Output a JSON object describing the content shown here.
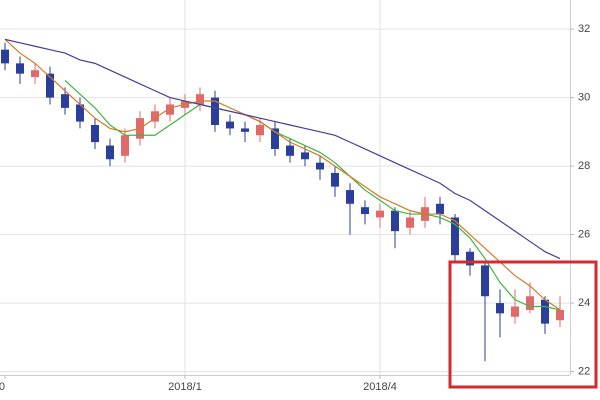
{
  "chart_data": {
    "type": "candlestick",
    "categories": [
      "0",
      null,
      null,
      null,
      null,
      null,
      null,
      null,
      null,
      null,
      null,
      null,
      "2018/1",
      null,
      null,
      null,
      null,
      null,
      null,
      null,
      null,
      null,
      null,
      null,
      null,
      "2018/4",
      null,
      null,
      null,
      null,
      null,
      null,
      null,
      null,
      null,
      null,
      null,
      null
    ],
    "open": [
      31.4,
      31.0,
      30.6,
      30.7,
      30.1,
      29.8,
      29.2,
      28.6,
      28.3,
      28.8,
      29.3,
      29.5,
      29.7,
      29.8,
      30.0,
      29.3,
      29.1,
      28.9,
      29.1,
      28.6,
      28.4,
      28.1,
      27.8,
      27.3,
      26.8,
      26.5,
      26.7,
      26.2,
      26.4,
      26.9,
      26.5,
      25.5,
      25.1,
      24.0,
      23.6,
      23.8,
      24.1,
      23.5
    ],
    "high": [
      31.6,
      31.2,
      31.0,
      30.9,
      30.3,
      30.0,
      29.4,
      28.8,
      29.1,
      29.6,
      29.8,
      30.0,
      30.1,
      30.3,
      30.2,
      29.5,
      29.3,
      29.4,
      29.3,
      28.8,
      28.6,
      28.3,
      28.0,
      27.5,
      27.0,
      26.9,
      26.8,
      26.7,
      27.1,
      27.1,
      26.6,
      25.6,
      25.2,
      24.4,
      24.4,
      24.6,
      24.2,
      24.2
    ],
    "low": [
      30.8,
      30.4,
      30.4,
      29.8,
      29.5,
      29.1,
      28.5,
      28.0,
      28.1,
      28.6,
      29.1,
      29.3,
      29.5,
      29.6,
      29.0,
      28.9,
      28.7,
      28.7,
      28.3,
      28.1,
      28.0,
      27.6,
      27.1,
      26.0,
      26.3,
      26.2,
      25.6,
      26.0,
      26.2,
      26.3,
      25.2,
      24.8,
      22.3,
      23.0,
      23.4,
      23.7,
      23.1,
      23.3
    ],
    "close": [
      31.0,
      30.7,
      30.8,
      30.0,
      29.7,
      29.3,
      28.7,
      28.2,
      28.9,
      29.4,
      29.6,
      29.8,
      29.9,
      30.1,
      29.2,
      29.1,
      29.0,
      29.2,
      28.5,
      28.3,
      28.2,
      27.9,
      27.4,
      26.9,
      26.6,
      26.7,
      26.1,
      26.5,
      26.8,
      26.6,
      25.4,
      25.1,
      24.2,
      23.7,
      23.9,
      24.2,
      23.4,
      23.8
    ],
    "up_color": "#e06a6a",
    "down_color": "#2c3e9c",
    "series": [
      {
        "color": "#3cb83c",
        "values": [
          null,
          null,
          null,
          null,
          30.5,
          30.1,
          29.7,
          29.2,
          28.9,
          28.9,
          28.9,
          29.2,
          29.5,
          29.8,
          29.7,
          29.6,
          29.5,
          29.3,
          29.0,
          28.8,
          28.6,
          28.4,
          28.1,
          27.7,
          27.3,
          27.0,
          26.7,
          26.6,
          26.6,
          26.5,
          26.3,
          25.9,
          25.3,
          24.6,
          24.1,
          23.9,
          23.9,
          23.8
        ]
      },
      {
        "color": "#d9782a",
        "values": [
          31.7,
          31.3,
          31.0,
          30.6,
          30.2,
          29.8,
          29.4,
          29.1,
          29.0,
          29.1,
          29.4,
          29.7,
          29.8,
          29.9,
          29.9,
          29.7,
          29.5,
          29.3,
          29.0,
          28.7,
          28.5,
          28.3,
          28.0,
          27.7,
          27.4,
          27.1,
          26.9,
          26.7,
          26.6,
          26.6,
          26.4,
          26.0,
          25.6,
          25.2,
          24.8,
          24.5,
          24.1,
          23.8
        ]
      },
      {
        "color": "#4b3a9a",
        "values": [
          31.7,
          31.6,
          31.5,
          31.4,
          31.3,
          31.1,
          31.0,
          30.8,
          30.6,
          30.4,
          30.2,
          30.0,
          29.9,
          29.8,
          29.7,
          29.6,
          29.5,
          29.4,
          29.3,
          29.2,
          29.1,
          29.0,
          28.9,
          28.7,
          28.5,
          28.3,
          28.1,
          27.9,
          27.7,
          27.5,
          27.2,
          27.0,
          26.7,
          26.4,
          26.1,
          25.8,
          25.5,
          25.3
        ]
      }
    ],
    "ylim": [
      21.9,
      32.85
    ],
    "yticks": [
      22,
      24,
      26,
      28,
      30,
      32
    ],
    "grid": true
  }
}
